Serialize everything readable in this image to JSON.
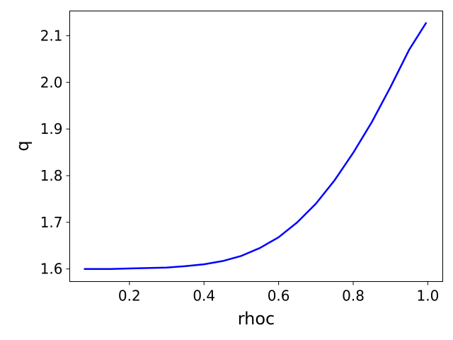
{
  "chart_data": {
    "type": "line",
    "title": "",
    "xlabel": "rhoc",
    "ylabel": "q",
    "xlim": [
      0.04,
      1.04
    ],
    "ylim": [
      1.573,
      2.153
    ],
    "grid": false,
    "legend": "none",
    "xticks": [
      0.2,
      0.4,
      0.6,
      0.8,
      1.0
    ],
    "xtick_labels": [
      "0.2",
      "0.4",
      "0.6",
      "0.8",
      "1.0"
    ],
    "yticks": [
      1.6,
      1.7,
      1.8,
      1.9,
      2.0,
      2.1
    ],
    "ytick_labels": [
      "1.6",
      "1.7",
      "1.8",
      "1.9",
      "2.0",
      "2.1"
    ],
    "series": [
      {
        "name": "q",
        "color": "#0000ff",
        "x": [
          0.08,
          0.1,
          0.15,
          0.2,
          0.25,
          0.3,
          0.35,
          0.4,
          0.45,
          0.5,
          0.55,
          0.6,
          0.65,
          0.7,
          0.75,
          0.8,
          0.85,
          0.9,
          0.95,
          0.995
        ],
        "y": [
          1.6,
          1.6,
          1.6,
          1.601,
          1.602,
          1.603,
          1.606,
          1.61,
          1.617,
          1.628,
          1.645,
          1.668,
          1.7,
          1.74,
          1.79,
          1.849,
          1.915,
          1.99,
          2.07,
          2.127
        ]
      }
    ]
  }
}
